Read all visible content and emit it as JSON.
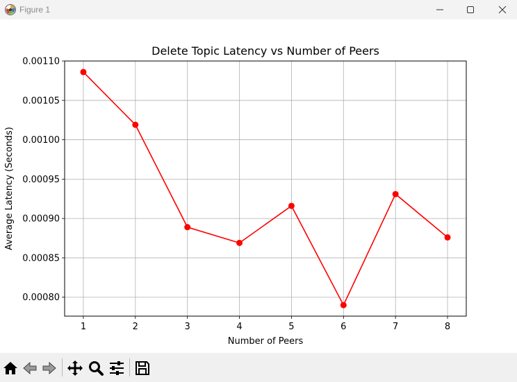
{
  "window": {
    "title": "Figure 1"
  },
  "toolbar": {
    "tools": [
      "home-icon",
      "back-icon",
      "forward-icon",
      "pan-icon",
      "zoom-icon",
      "configure-subplots-icon",
      "save-icon"
    ]
  },
  "colors": {
    "series": "#ff0000",
    "grid": "#b0b0b0",
    "titlebar": "#f3f3f3",
    "toolbar": "#f0f0f0"
  },
  "chart_data": {
    "type": "line",
    "title": "Delete Topic Latency vs Number of Peers",
    "xlabel": "Number of Peers",
    "ylabel": "Average Latency (Seconds)",
    "x": [
      1,
      2,
      3,
      4,
      5,
      6,
      7,
      8
    ],
    "series": [
      {
        "values": [
          0.001086,
          0.001019,
          0.000889,
          0.000869,
          0.000916,
          0.00079,
          0.000931,
          0.000876
        ],
        "color": "#ff0000",
        "marker": "circle"
      }
    ],
    "xlim": [
      0.64,
      8.36
    ],
    "ylim": [
      0.000776,
      0.0011
    ],
    "xticks": [
      "1",
      "2",
      "3",
      "4",
      "5",
      "6",
      "7",
      "8"
    ],
    "yticks": [
      "0.00080",
      "0.00085",
      "0.00090",
      "0.00095",
      "0.00100",
      "0.00105",
      "0.00110"
    ],
    "ytick_values": [
      0.0008,
      0.00085,
      0.0009,
      0.00095,
      0.001,
      0.00105,
      0.0011
    ],
    "grid": true
  }
}
